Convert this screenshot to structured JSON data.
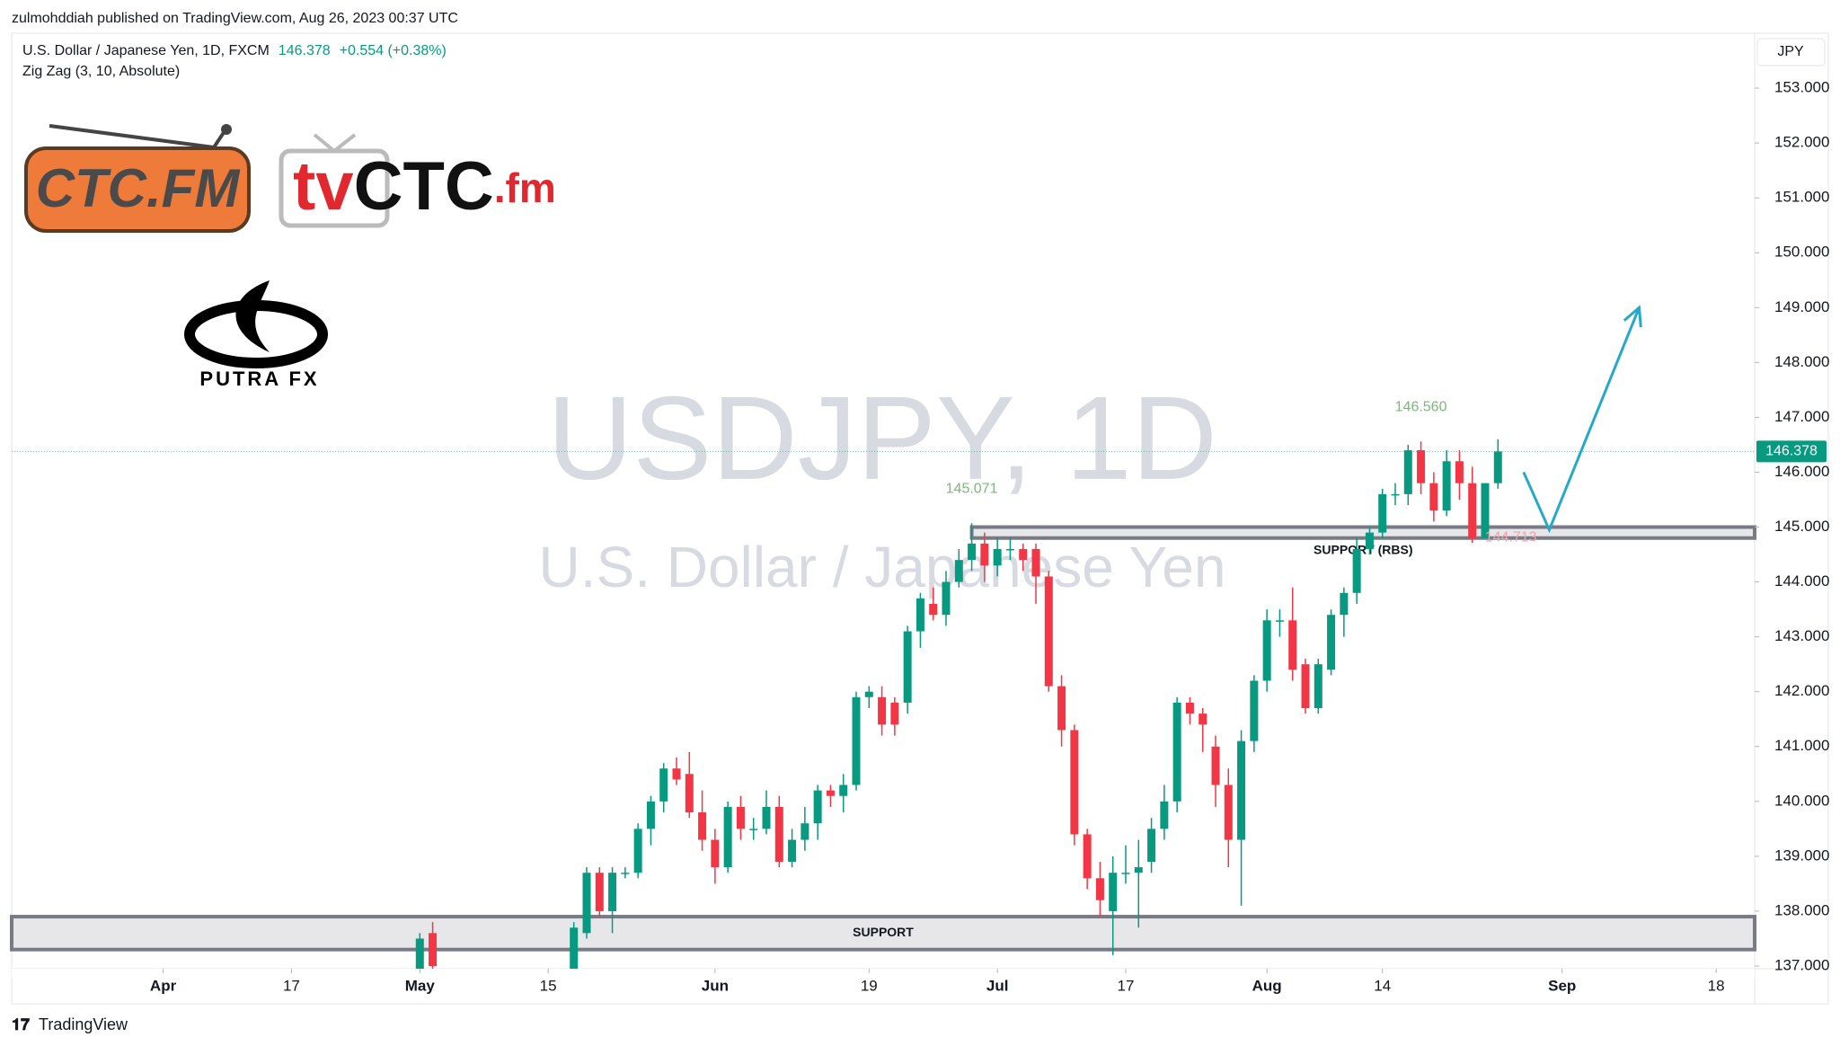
{
  "header": {
    "publisher": "zulmohddiah published on TradingView.com, Aug 26, 2023 00:37 UTC"
  },
  "footer": {
    "brand": "TradingView"
  },
  "logos": {
    "ctc": "CTC.FM",
    "tv_a": "tv",
    "tv_b": "CTC",
    "tv_c": ".fm",
    "putra": "PUTRA FX"
  },
  "chart_data": {
    "type": "candlestick",
    "title": "U.S. Dollar / Japanese Yen, 1D, FXCM",
    "last_price": 146.378,
    "change_label": "+0.554 (+0.38%)",
    "indicator": "Zig Zag (3, 10, Absolute)",
    "currency": "JPY",
    "watermark": "USDJPY, 1D",
    "watermark_subtitle": "U.S. Dollar / Japanese Yen",
    "up_color": "#089981",
    "down_color": "#f23645",
    "x": [
      20,
      21,
      32,
      33,
      34,
      35,
      36,
      37,
      38,
      39,
      40,
      41,
      42,
      43,
      44,
      45,
      46,
      47,
      48,
      49,
      50,
      51,
      52,
      53,
      54,
      55,
      56,
      57,
      58,
      59,
      60,
      61,
      62,
      63,
      64,
      65,
      66,
      67,
      68,
      69,
      70,
      71,
      72,
      73,
      74,
      75,
      76,
      77,
      78,
      79,
      80,
      81,
      82,
      83,
      84,
      85,
      86,
      87,
      88,
      89,
      90,
      91,
      92,
      93,
      94,
      95,
      96,
      97,
      98,
      99,
      100,
      101,
      102,
      103,
      104
    ],
    "open": [
      136.9,
      137.6,
      136.9,
      137.6,
      138.7,
      138.0,
      138.7,
      138.7,
      139.5,
      140.0,
      140.6,
      140.5,
      139.8,
      139.3,
      138.8,
      139.9,
      139.5,
      139.5,
      139.9,
      138.9,
      139.3,
      139.6,
      140.2,
      140.1,
      140.3,
      141.9,
      141.9,
      141.8,
      141.8,
      143.1,
      143.6,
      143.4,
      144.0,
      144.4,
      144.7,
      144.3,
      144.6,
      144.6,
      144.6,
      144.1,
      142.1,
      141.3,
      139.4,
      138.6,
      138.0,
      138.7,
      138.7,
      138.9,
      139.5,
      140.0,
      141.8,
      141.6,
      141.0,
      140.3,
      139.3,
      141.1,
      142.2,
      143.3,
      143.3,
      142.5,
      141.7,
      142.4,
      143.4,
      143.8,
      144.6,
      144.9,
      145.6,
      145.6,
      146.4,
      145.8,
      145.3,
      146.2,
      145.8,
      144.8,
      145.8
    ],
    "high": [
      137.6,
      137.8,
      137.8,
      138.8,
      138.8,
      138.8,
      138.8,
      139.6,
      140.1,
      140.7,
      140.8,
      140.9,
      140.2,
      139.5,
      140.0,
      140.1,
      139.7,
      140.2,
      140.1,
      139.5,
      139.9,
      140.3,
      140.3,
      140.5,
      142.0,
      142.1,
      142.1,
      141.9,
      143.2,
      143.8,
      143.9,
      144.2,
      144.6,
      145.071,
      144.9,
      144.8,
      144.8,
      144.7,
      144.7,
      144.2,
      142.3,
      141.4,
      139.5,
      138.9,
      139.0,
      139.2,
      139.3,
      139.7,
      140.3,
      141.9,
      141.9,
      141.7,
      141.2,
      140.6,
      141.3,
      142.3,
      143.5,
      143.5,
      143.9,
      142.6,
      142.6,
      143.5,
      143.9,
      144.8,
      145.0,
      145.7,
      145.8,
      146.5,
      146.56,
      146.0,
      146.4,
      146.4,
      146.1,
      145.8,
      146.6
    ],
    "low": [
      136.8,
      136.9,
      136.8,
      137.5,
      137.9,
      137.6,
      138.6,
      138.6,
      139.2,
      139.8,
      140.3,
      139.7,
      139.1,
      138.5,
      138.7,
      139.3,
      139.3,
      139.4,
      138.8,
      138.8,
      139.1,
      139.3,
      139.9,
      139.8,
      140.2,
      141.7,
      141.2,
      141.2,
      141.6,
      142.8,
      143.3,
      143.2,
      143.9,
      144.2,
      144.0,
      144.1,
      144.4,
      144.2,
      143.6,
      142.0,
      141.0,
      139.2,
      138.4,
      137.9,
      137.2,
      138.5,
      137.7,
      138.7,
      139.3,
      139.8,
      141.4,
      140.9,
      139.9,
      138.8,
      138.1,
      140.9,
      142.0,
      143.0,
      142.2,
      141.6,
      141.6,
      142.3,
      143.0,
      143.6,
      144.5,
      144.8,
      145.4,
      145.4,
      145.6,
      145.1,
      145.2,
      145.5,
      144.713,
      144.8,
      145.7
    ],
    "close": [
      137.5,
      137.0,
      137.7,
      138.7,
      138.0,
      138.7,
      138.7,
      139.5,
      140.0,
      140.6,
      140.4,
      139.8,
      139.3,
      138.8,
      139.9,
      139.5,
      139.5,
      139.9,
      138.9,
      139.3,
      139.6,
      140.2,
      140.1,
      140.3,
      141.9,
      142.0,
      141.4,
      141.4,
      143.1,
      143.7,
      143.4,
      144.0,
      144.4,
      144.7,
      144.3,
      144.6,
      144.6,
      144.4,
      144.1,
      142.1,
      141.3,
      139.4,
      138.6,
      138.2,
      138.7,
      138.7,
      138.8,
      139.5,
      140.0,
      141.8,
      141.6,
      141.4,
      140.3,
      139.3,
      141.1,
      142.2,
      143.3,
      143.3,
      142.4,
      141.7,
      142.5,
      143.4,
      143.8,
      144.6,
      144.9,
      145.6,
      145.6,
      146.4,
      145.8,
      145.3,
      146.2,
      145.8,
      144.8,
      145.8,
      146.378
    ],
    "xlim": [
      -11.8,
      124
    ],
    "ylim": [
      137,
      154
    ],
    "xticks": [
      {
        "value": 0,
        "label": "Apr"
      },
      {
        "value": 10,
        "label": "17"
      },
      {
        "value": 20,
        "label": "May"
      },
      {
        "value": 30,
        "label": "15"
      },
      {
        "value": 43,
        "label": "Jun"
      },
      {
        "value": 55,
        "label": "19"
      },
      {
        "value": 65,
        "label": "Jul"
      },
      {
        "value": 75,
        "label": "17"
      },
      {
        "value": 86,
        "label": "Aug"
      },
      {
        "value": 95,
        "label": "14"
      },
      {
        "value": 109,
        "label": "Sep"
      },
      {
        "value": 121,
        "label": "18"
      }
    ],
    "yticks": [
      {
        "value": 137,
        "label": "137.000"
      },
      {
        "value": 138,
        "label": "138.000"
      },
      {
        "value": 139,
        "label": "139.000"
      },
      {
        "value": 140,
        "label": "140.000"
      },
      {
        "value": 141,
        "label": "141.000"
      },
      {
        "value": 142,
        "label": "142.000"
      },
      {
        "value": 143,
        "label": "143.000"
      },
      {
        "value": 144,
        "label": "144.000"
      },
      {
        "value": 145,
        "label": "145.000"
      },
      {
        "value": 146,
        "label": "146.000"
      },
      {
        "value": 147,
        "label": "147.000"
      },
      {
        "value": 148,
        "label": "148.000"
      },
      {
        "value": 149,
        "label": "149.000"
      },
      {
        "value": 150,
        "label": "150.000"
      },
      {
        "value": 151,
        "label": "151.000"
      },
      {
        "value": 152,
        "label": "152.000"
      },
      {
        "value": 153,
        "label": "153.000"
      }
    ],
    "annotations": [
      {
        "x": 63,
        "value": 145.071,
        "label": "145.071",
        "color": "#7cb87a",
        "place": "above"
      },
      {
        "x": 98,
        "value": 146.56,
        "label": "146.560",
        "color": "#7cb87a",
        "place": "above"
      },
      {
        "x": 102,
        "value": 144.713,
        "label": "144.713",
        "color": "#f7a1a8",
        "place": "right"
      }
    ],
    "zones": [
      {
        "label": "SUPPORT (RBS)",
        "from": 63,
        "top": 145.0,
        "bottom": 144.8
      },
      {
        "label": "SUPPORT",
        "top": 137.9,
        "bottom": 137.3
      }
    ],
    "projection": {
      "x": [
        106,
        108,
        115
      ],
      "y": [
        146.0,
        144.95,
        149.0
      ],
      "color": "#26a9c8"
    }
  }
}
